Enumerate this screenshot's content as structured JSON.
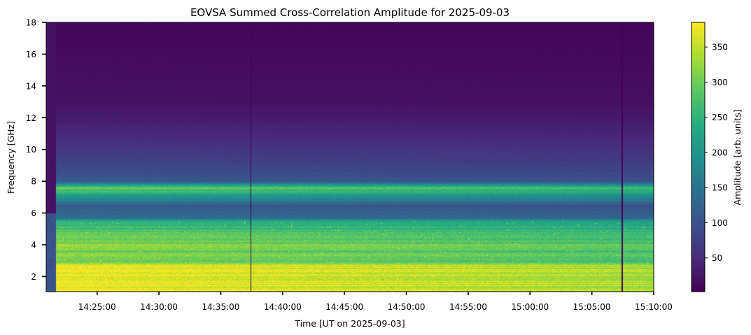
{
  "chart_data": {
    "type": "heatmap",
    "title": "EOVSA Summed Cross-Correlation Amplitude for 2025-09-03",
    "xlabel": "Time [UT on 2025-09-03]",
    "ylabel": "Frequency [GHz]",
    "colorbar_label": "Amplitude [arb. units]",
    "colormap": "viridis",
    "x_range": [
      "14:20:53",
      "15:10:00"
    ],
    "y_range": [
      1.05,
      18
    ],
    "color_range": [
      2,
      385
    ],
    "x_ticks": [
      "14:25:00",
      "14:30:00",
      "14:35:00",
      "14:40:00",
      "14:45:00",
      "14:50:00",
      "14:55:00",
      "15:00:00",
      "15:05:00",
      "15:10:00"
    ],
    "y_ticks": [
      2,
      4,
      6,
      8,
      10,
      12,
      14,
      16,
      18
    ],
    "colorbar_ticks": [
      50,
      100,
      150,
      200,
      250,
      300,
      350
    ],
    "data_start_time": "14:21:40",
    "gaps": [
      "14:37:25",
      "15:07:25"
    ],
    "spectral_profile_ghz": [
      {
        "freq": 1.05,
        "amplitude": 385
      },
      {
        "freq": 2.0,
        "amplitude": 385
      },
      {
        "freq": 2.7,
        "amplitude": 385
      },
      {
        "freq": 2.8,
        "amplitude": 330
      },
      {
        "freq": 3.0,
        "amplitude": 300
      },
      {
        "freq": 3.3,
        "amplitude": 330
      },
      {
        "freq": 3.6,
        "amplitude": 300
      },
      {
        "freq": 4.0,
        "amplitude": 320
      },
      {
        "freq": 4.6,
        "amplitude": 300
      },
      {
        "freq": 5.0,
        "amplitude": 270
      },
      {
        "freq": 5.5,
        "amplitude": 250
      },
      {
        "freq": 5.7,
        "amplitude": 140
      },
      {
        "freq": 6.5,
        "amplitude": 115
      },
      {
        "freq": 7.6,
        "amplitude": 300
      },
      {
        "freq": 8.0,
        "amplitude": 110
      },
      {
        "freq": 9.0,
        "amplitude": 85
      },
      {
        "freq": 10.0,
        "amplitude": 65
      },
      {
        "freq": 11.5,
        "amplitude": 40
      },
      {
        "freq": 13.0,
        "amplitude": 20
      },
      {
        "freq": 18.0,
        "amplitude": 8
      }
    ]
  }
}
